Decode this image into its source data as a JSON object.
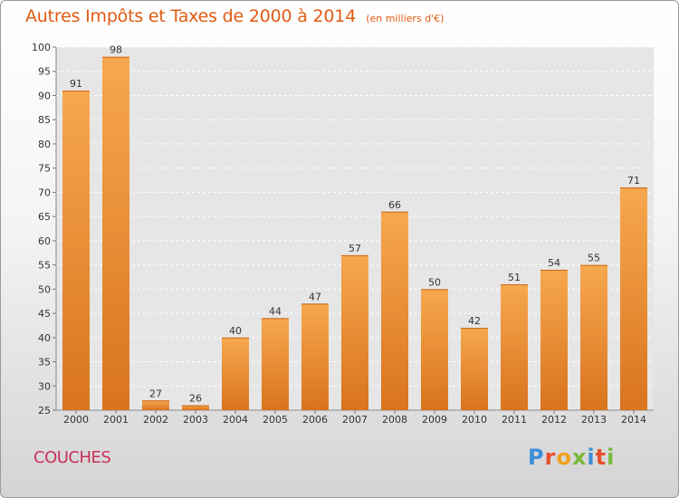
{
  "chart_data": {
    "type": "bar",
    "title": "Autres Impôts et Taxes de 2000 à 2014",
    "subtitle": "(en milliers d'€)",
    "categories": [
      "2000",
      "2001",
      "2002",
      "2003",
      "2004",
      "2005",
      "2006",
      "2007",
      "2008",
      "2009",
      "2010",
      "2011",
      "2012",
      "2013",
      "2014"
    ],
    "values": [
      91,
      98,
      27,
      26,
      40,
      44,
      47,
      57,
      66,
      50,
      42,
      51,
      54,
      55,
      71
    ],
    "ylim": [
      25,
      100
    ],
    "yticks": [
      25,
      30,
      35,
      40,
      45,
      50,
      55,
      60,
      65,
      70,
      75,
      80,
      85,
      90,
      95,
      100
    ],
    "xlabel": "",
    "ylabel": "",
    "grid": "horizontal-dashed",
    "colors": {
      "bar_light": "#f7a84e",
      "bar_dark": "#d9741e",
      "text": "#333333"
    }
  },
  "footer": {
    "place": "COUCHES",
    "logo": "Proxiti"
  },
  "logo_colors": [
    "#3d8fd9",
    "#e7502a",
    "#f0a020",
    "#7ab83a",
    "#3d8fd9",
    "#e7502a",
    "#7ab83a"
  ]
}
